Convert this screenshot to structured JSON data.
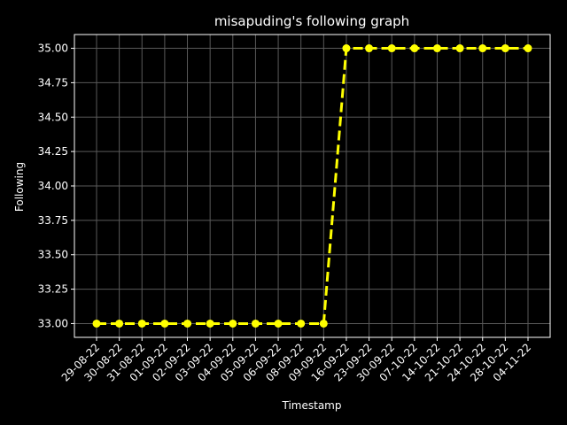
{
  "chart_data": {
    "type": "line",
    "title": "misapuding's following graph",
    "xlabel": "Timestamp",
    "ylabel": "Following",
    "categories": [
      "29-08-22",
      "30-08-22",
      "31-08-22",
      "01-09-22",
      "02-09-22",
      "03-09-22",
      "04-09-22",
      "05-09-22",
      "06-09-22",
      "08-09-22",
      "09-09-22",
      "16-09-22",
      "23-09-22",
      "30-09-22",
      "07-10-22",
      "14-10-22",
      "21-10-22",
      "24-10-22",
      "28-10-22",
      "04-11-22"
    ],
    "series": [
      {
        "values": [
          33,
          33,
          33,
          33,
          33,
          33,
          33,
          33,
          33,
          33,
          33,
          35,
          35,
          35,
          35,
          35,
          35,
          35,
          35,
          35
        ]
      }
    ],
    "yticks": [
      33.0,
      33.25,
      33.5,
      33.75,
      34.0,
      34.25,
      34.5,
      34.75,
      35.0
    ],
    "ylim": [
      32.9,
      35.1
    ],
    "grid": true,
    "colors": {
      "background": "#000000",
      "line": "#ffff00",
      "marker": "#ffff00",
      "grid": "#5a5a5a",
      "axis": "#ffffff",
      "text": "#ffffff"
    }
  }
}
